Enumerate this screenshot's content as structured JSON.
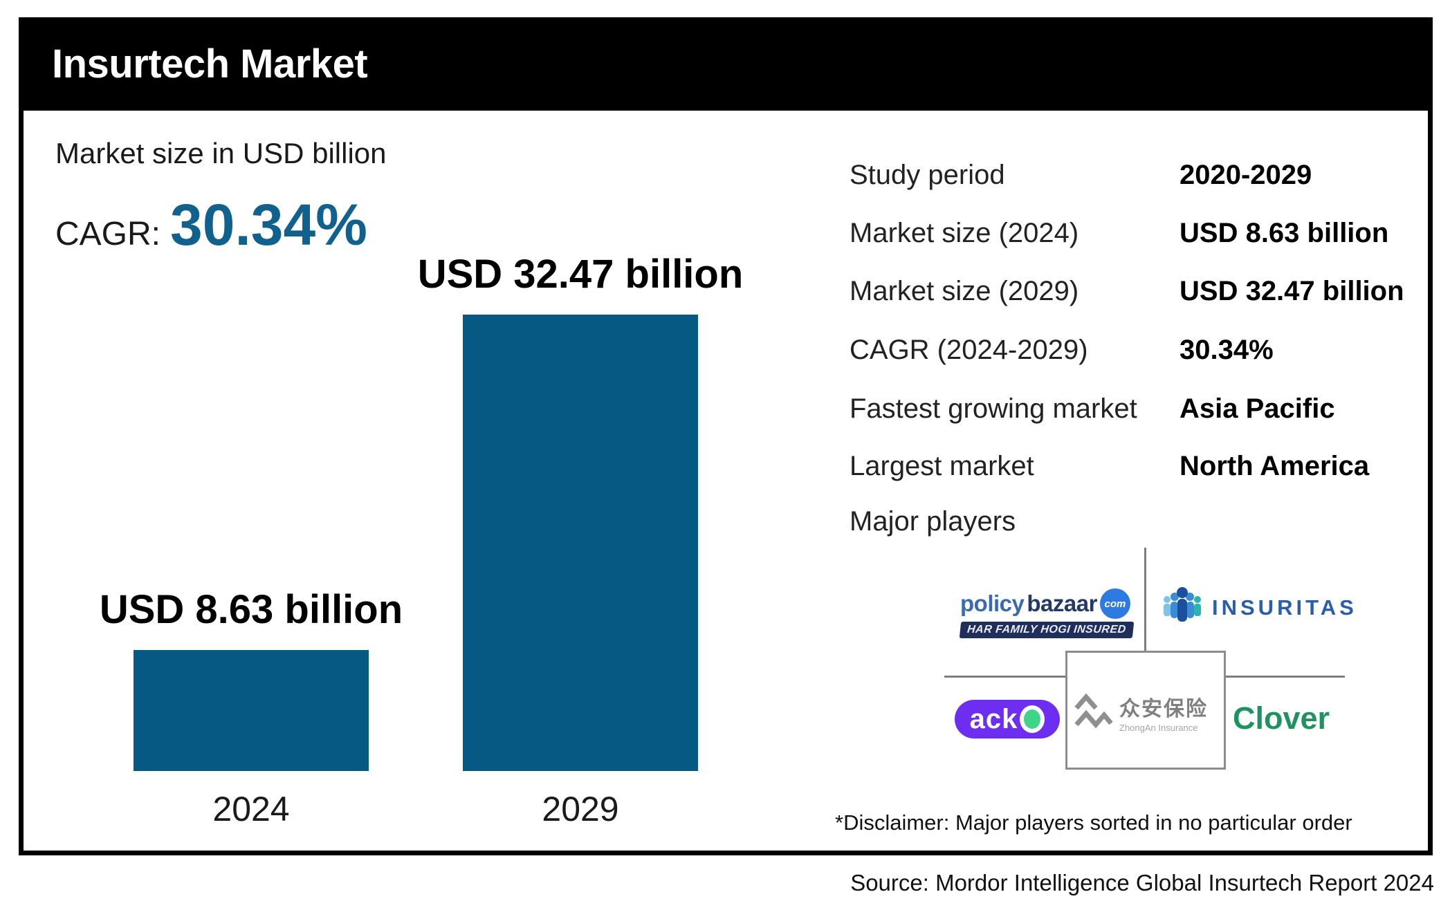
{
  "header": {
    "title": "Insurtech Market"
  },
  "chart_data": {
    "type": "bar",
    "title": "Market size in USD billion",
    "categories": [
      "2024",
      "2029"
    ],
    "values": [
      8.63,
      32.47
    ],
    "unit": "USD billion",
    "bar_labels": [
      "USD 8.63 billion",
      "USD 32.47 billion"
    ],
    "cagr_prefix": "CAGR:",
    "cagr_value": "30.34%",
    "bar_color": "#065983",
    "accent_color": "#11618F",
    "ylim": [
      0,
      32.47
    ],
    "grid": false,
    "legend": false
  },
  "facts": {
    "rows": [
      {
        "label": "Study period",
        "value": "2020-2029"
      },
      {
        "label": "Market size (2024)",
        "value": "USD 8.63 billion"
      },
      {
        "label": "Market size (2029)",
        "value": "USD 32.47 billion"
      },
      {
        "label": "CAGR (2024-2029)",
        "value": "30.34%"
      },
      {
        "label": "Fastest growing market",
        "value": "Asia Pacific"
      },
      {
        "label": "Largest market",
        "value": "North America"
      }
    ],
    "major_players_label": "Major players"
  },
  "players": {
    "policybazaar": {
      "wordmark_part1": "policy",
      "wordmark_part2": "bazaar",
      "badge": "com",
      "tagline": "HAR FAMILY HOGI INSURED"
    },
    "insuritas": {
      "wordmark": "INSURITAS"
    },
    "acko": {
      "name": "acko",
      "wordmark_prefix": "ack"
    },
    "zhongan": {
      "name_cn": "众安保险",
      "name_en": "ZhongAn Insurance"
    },
    "clover": {
      "wordmark": "Clover"
    }
  },
  "footnotes": {
    "disclaimer": "*Disclaimer: Major players sorted in no particular order",
    "source": "Source: Mordor Intelligence Global Insurtech Report 2024"
  }
}
